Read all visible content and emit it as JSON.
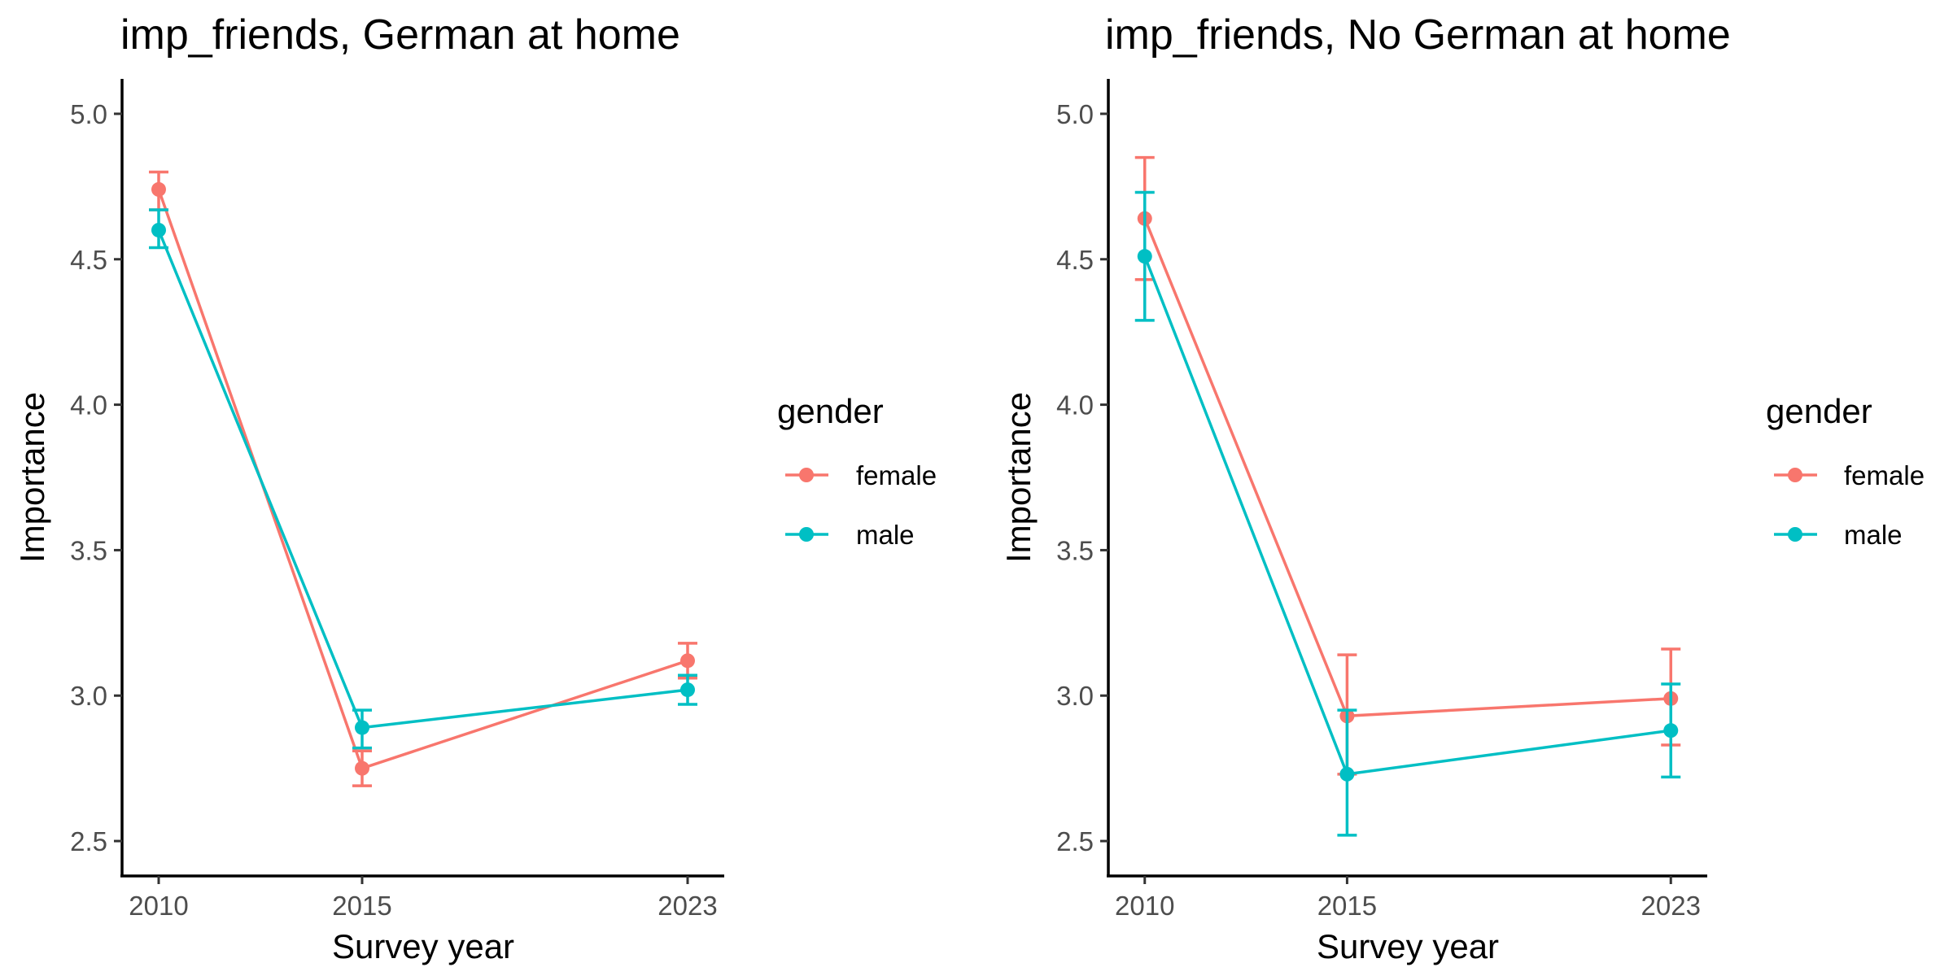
{
  "colors": {
    "female": "#F8766D",
    "male": "#00BFC4"
  },
  "chart_data": [
    {
      "type": "line",
      "title": "imp_friends, German at home",
      "xlabel": "Survey year",
      "ylabel": "Importance",
      "x": [
        2010,
        2015,
        2023
      ],
      "xlim": [
        2009.1,
        2023.9
      ],
      "ylim": [
        2.38,
        5.12
      ],
      "yticks": [
        2.5,
        3.0,
        3.5,
        4.0,
        4.5,
        5.0
      ],
      "ytick_labels": [
        "2.5",
        "3.0",
        "3.5",
        "4.0",
        "4.5",
        "5.0"
      ],
      "xtick_labels": [
        "2010",
        "2015",
        "2023"
      ],
      "grid": false,
      "legend": {
        "title": "gender",
        "placement": "right"
      },
      "series": [
        {
          "name": "female",
          "values": [
            4.74,
            2.75,
            3.12
          ],
          "lower": [
            4.67,
            2.69,
            3.06
          ],
          "upper": [
            4.8,
            2.81,
            3.18
          ]
        },
        {
          "name": "male",
          "values": [
            4.6,
            2.89,
            3.02
          ],
          "lower": [
            4.54,
            2.82,
            2.97
          ],
          "upper": [
            4.67,
            2.95,
            3.07
          ]
        }
      ]
    },
    {
      "type": "line",
      "title": "imp_friends, No German at home",
      "xlabel": "Survey year",
      "ylabel": "Importance",
      "x": [
        2010,
        2015,
        2023
      ],
      "xlim": [
        2009.1,
        2023.9
      ],
      "ylim": [
        2.38,
        5.12
      ],
      "yticks": [
        2.5,
        3.0,
        3.5,
        4.0,
        4.5,
        5.0
      ],
      "ytick_labels": [
        "2.5",
        "3.0",
        "3.5",
        "4.0",
        "4.5",
        "5.0"
      ],
      "xtick_labels": [
        "2010",
        "2015",
        "2023"
      ],
      "grid": false,
      "legend": {
        "title": "gender",
        "placement": "right"
      },
      "series": [
        {
          "name": "female",
          "values": [
            4.64,
            2.93,
            2.99
          ],
          "lower": [
            4.43,
            2.73,
            2.83
          ],
          "upper": [
            4.85,
            3.14,
            3.16
          ]
        },
        {
          "name": "male",
          "values": [
            4.51,
            2.73,
            2.88
          ],
          "lower": [
            4.29,
            2.52,
            2.72
          ],
          "upper": [
            4.73,
            2.95,
            3.04
          ]
        }
      ]
    }
  ]
}
